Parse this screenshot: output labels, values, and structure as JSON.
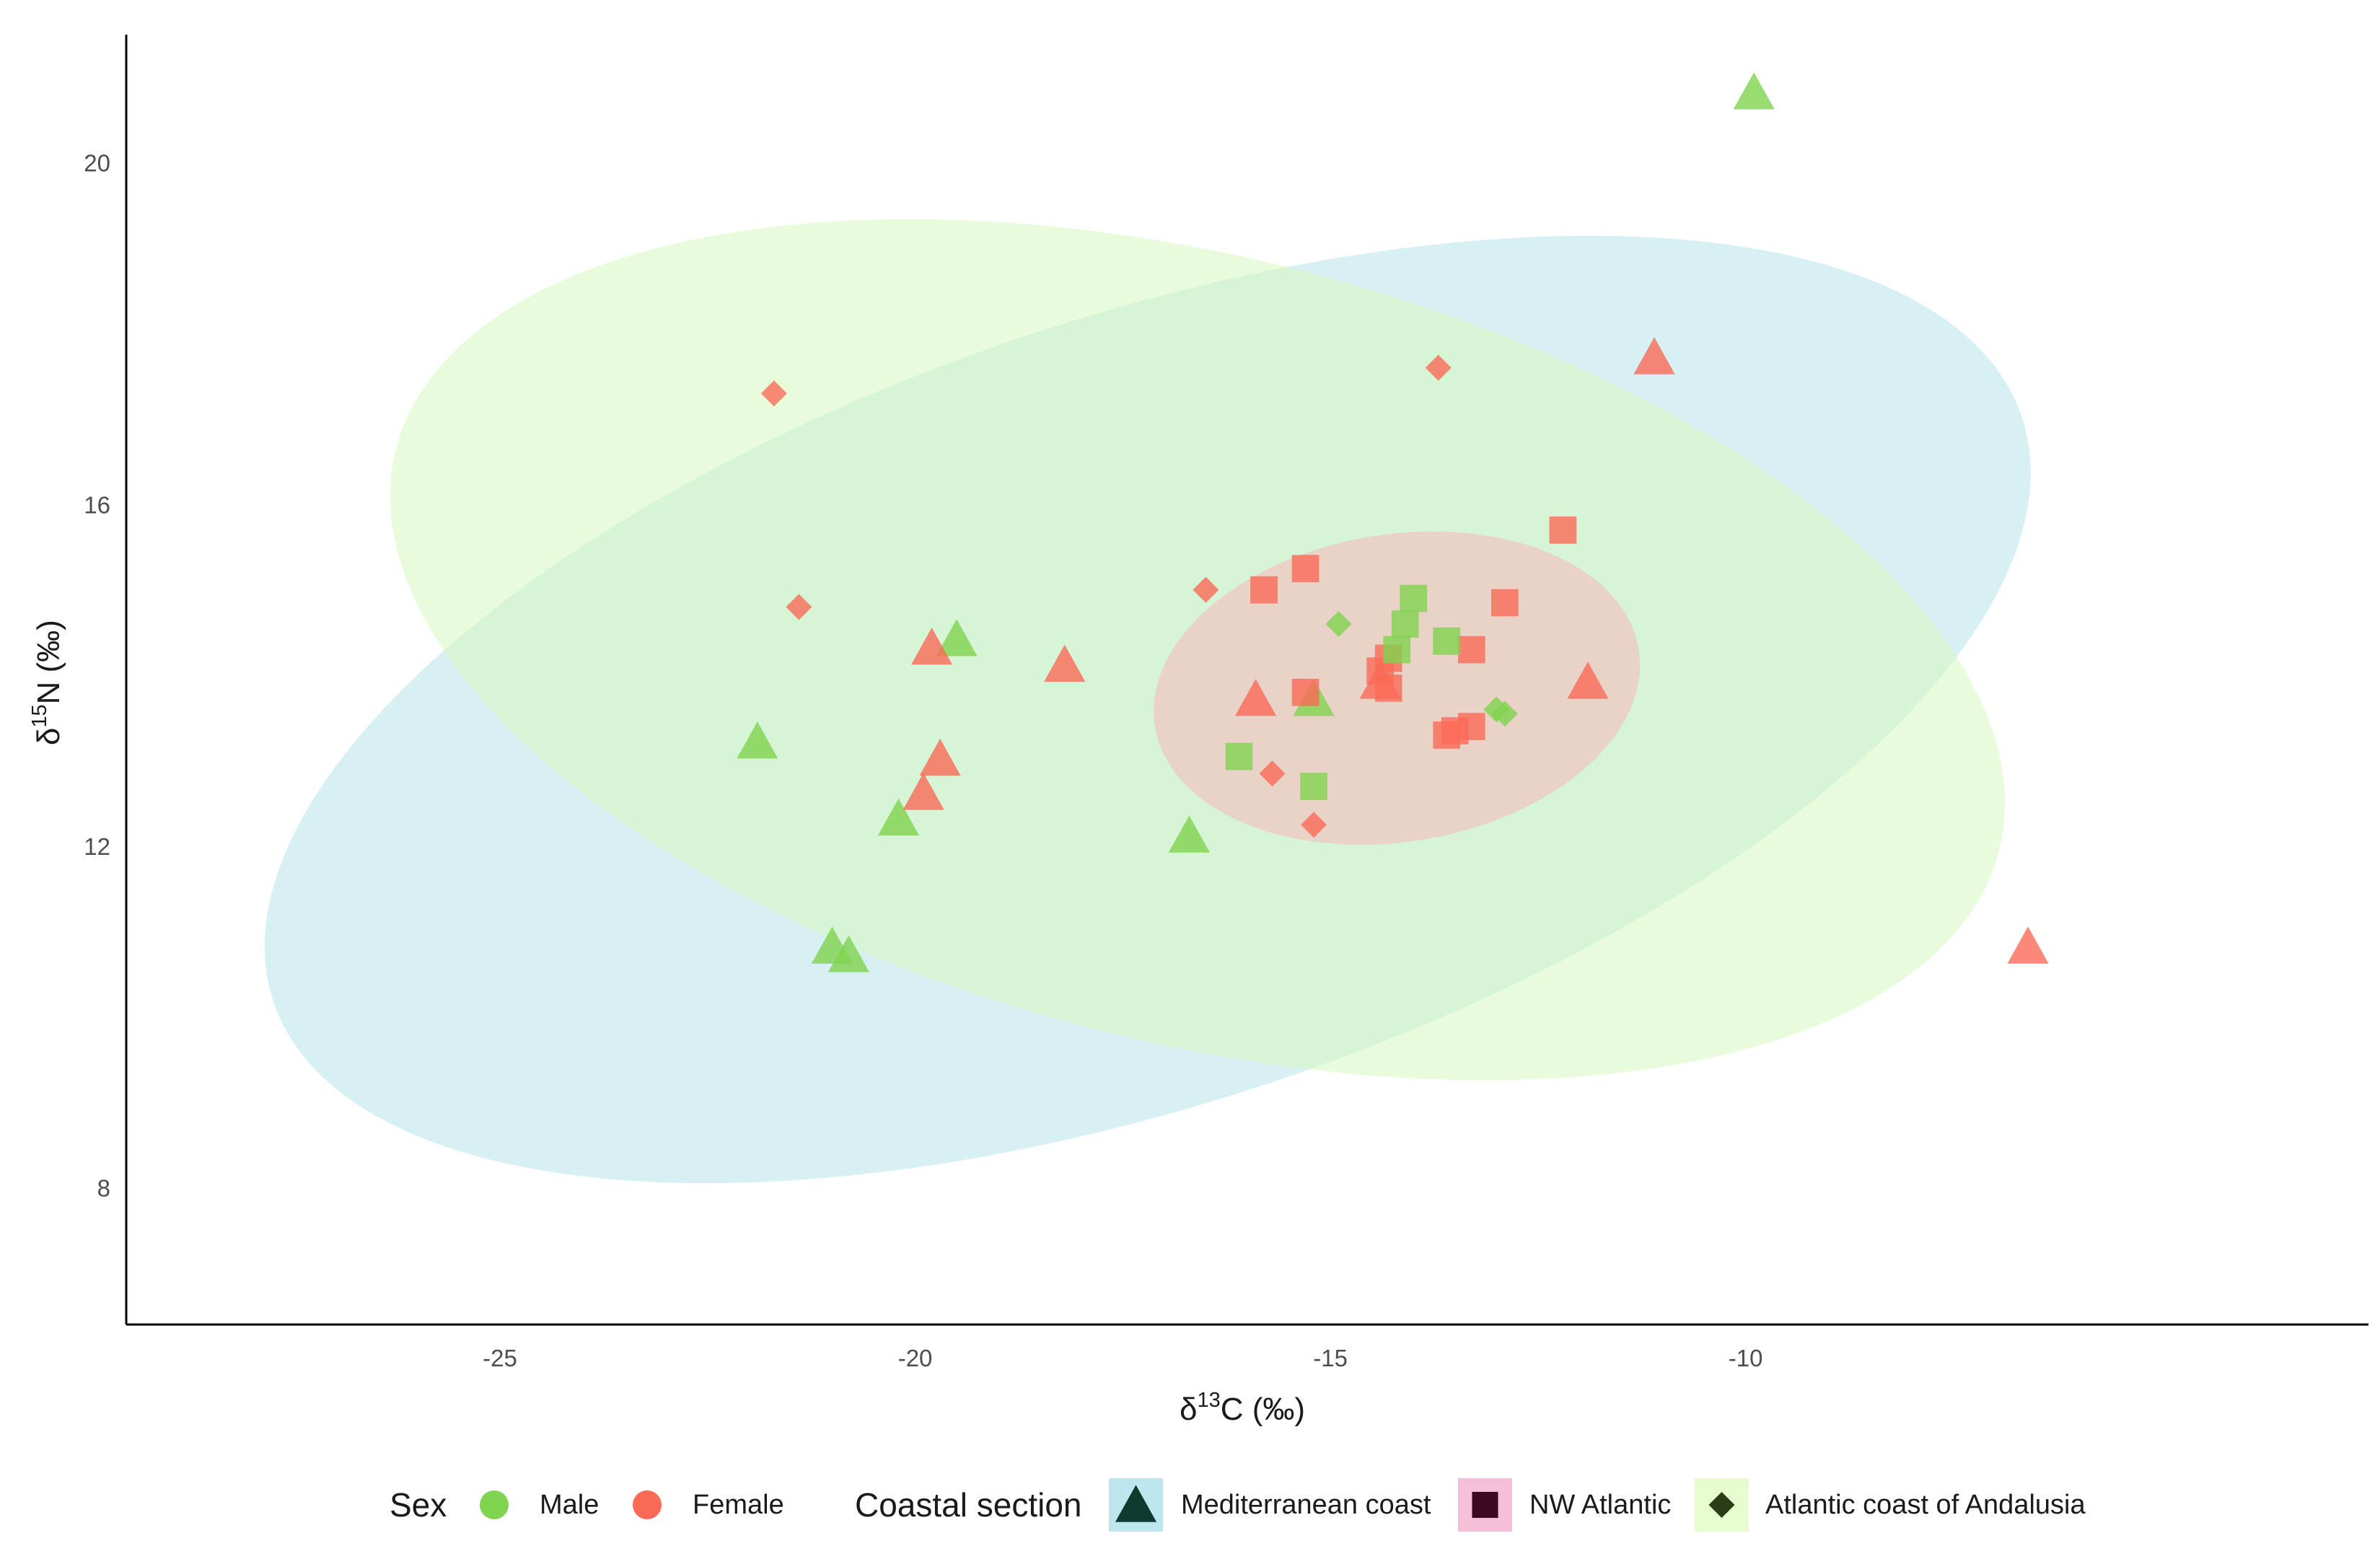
{
  "chart_data": {
    "type": "scatter",
    "xlabel": {
      "prefix": "δ",
      "sup": "13",
      "main": "C (‰)"
    },
    "ylabel": {
      "prefix": "δ",
      "sup": "15",
      "main": "N (‰)"
    },
    "xlim": [
      -29.5,
      -2.5
    ],
    "ylim": [
      6.4,
      21.5
    ],
    "x_ticks": [
      -25,
      -20,
      -15,
      -10
    ],
    "x_tick_labels": [
      "-25",
      "-20",
      "-15",
      "-10"
    ],
    "y_ticks": [
      8,
      12,
      16,
      20
    ],
    "y_tick_labels": [
      "8",
      "12",
      "16",
      "20"
    ],
    "colors": {
      "Male": "#7fd34e",
      "Female": "#fa6a56"
    },
    "ellipses": [
      {
        "group": "Mediterranean coast",
        "fill": "#b7e3e9",
        "opacity": 0.55,
        "cx": -17.2,
        "cy": 13.6,
        "rx_units": 11.1,
        "ry_units": 4.6,
        "angle_deg": -18.5
      },
      {
        "group": "Atlantic coast of Andalusia",
        "fill": "#d6f9bf",
        "opacity": 0.55,
        "cx": -16.6,
        "cy": 14.3,
        "rx_units": 9.95,
        "ry_units": 4.6,
        "angle_deg": 14
      },
      {
        "group": "NW Atlantic",
        "fill": "#f9b5bc",
        "opacity": 0.55,
        "cx": -14.2,
        "cy": 13.85,
        "rx_units": 2.95,
        "ry_units": 1.8,
        "angle_deg": -9
      }
    ],
    "points": [
      {
        "x": -9.9,
        "y": 20.8,
        "sex": "Male",
        "section": "Mediterranean coast"
      },
      {
        "x": -21.9,
        "y": 13.2,
        "sex": "Male",
        "section": "Mediterranean coast"
      },
      {
        "x": -19.5,
        "y": 14.4,
        "sex": "Male",
        "section": "Mediterranean coast"
      },
      {
        "x": -20.2,
        "y": 12.3,
        "sex": "Male",
        "section": "Mediterranean coast"
      },
      {
        "x": -21.0,
        "y": 10.8,
        "sex": "Male",
        "section": "Mediterranean coast"
      },
      {
        "x": -20.8,
        "y": 10.7,
        "sex": "Male",
        "section": "Mediterranean coast"
      },
      {
        "x": -16.7,
        "y": 12.1,
        "sex": "Male",
        "section": "Mediterranean coast"
      },
      {
        "x": -15.2,
        "y": 13.7,
        "sex": "Male",
        "section": "Mediterranean coast"
      },
      {
        "x": -11.1,
        "y": 17.7,
        "sex": "Female",
        "section": "Mediterranean coast"
      },
      {
        "x": -19.8,
        "y": 14.3,
        "sex": "Female",
        "section": "Mediterranean coast"
      },
      {
        "x": -18.2,
        "y": 14.1,
        "sex": "Female",
        "section": "Mediterranean coast"
      },
      {
        "x": -19.7,
        "y": 13.0,
        "sex": "Female",
        "section": "Mediterranean coast"
      },
      {
        "x": -19.9,
        "y": 12.6,
        "sex": "Female",
        "section": "Mediterranean coast"
      },
      {
        "x": -15.9,
        "y": 13.7,
        "sex": "Female",
        "section": "Mediterranean coast"
      },
      {
        "x": -14.4,
        "y": 13.9,
        "sex": "Female",
        "section": "Mediterranean coast"
      },
      {
        "x": -11.9,
        "y": 13.9,
        "sex": "Female",
        "section": "Mediterranean coast"
      },
      {
        "x": -6.6,
        "y": 10.8,
        "sex": "Female",
        "section": "Mediterranean coast"
      },
      {
        "x": -15.8,
        "y": 15.0,
        "sex": "Female",
        "section": "NW Atlantic"
      },
      {
        "x": -15.3,
        "y": 15.25,
        "sex": "Female",
        "section": "NW Atlantic"
      },
      {
        "x": -12.2,
        "y": 15.7,
        "sex": "Female",
        "section": "NW Atlantic"
      },
      {
        "x": -12.9,
        "y": 14.85,
        "sex": "Female",
        "section": "NW Atlantic"
      },
      {
        "x": -13.3,
        "y": 14.3,
        "sex": "Female",
        "section": "NW Atlantic"
      },
      {
        "x": -14.3,
        "y": 14.2,
        "sex": "Female",
        "section": "NW Atlantic"
      },
      {
        "x": -14.4,
        "y": 14.05,
        "sex": "Female",
        "section": "NW Atlantic"
      },
      {
        "x": -15.3,
        "y": 13.8,
        "sex": "Female",
        "section": "NW Atlantic"
      },
      {
        "x": -14.3,
        "y": 13.85,
        "sex": "Female",
        "section": "NW Atlantic"
      },
      {
        "x": -13.3,
        "y": 13.4,
        "sex": "Female",
        "section": "NW Atlantic"
      },
      {
        "x": -13.6,
        "y": 13.3,
        "sex": "Female",
        "section": "NW Atlantic"
      },
      {
        "x": -13.5,
        "y": 13.35,
        "sex": "Female",
        "section": "NW Atlantic"
      },
      {
        "x": -14.0,
        "y": 14.9,
        "sex": "Male",
        "section": "NW Atlantic"
      },
      {
        "x": -14.1,
        "y": 14.6,
        "sex": "Male",
        "section": "NW Atlantic"
      },
      {
        "x": -14.2,
        "y": 14.3,
        "sex": "Male",
        "section": "NW Atlantic"
      },
      {
        "x": -13.6,
        "y": 14.4,
        "sex": "Male",
        "section": "NW Atlantic"
      },
      {
        "x": -16.1,
        "y": 13.05,
        "sex": "Male",
        "section": "NW Atlantic"
      },
      {
        "x": -15.2,
        "y": 12.7,
        "sex": "Male",
        "section": "NW Atlantic"
      },
      {
        "x": -21.7,
        "y": 17.3,
        "sex": "Female",
        "section": "Atlantic coast of Andalusia"
      },
      {
        "x": -21.4,
        "y": 14.8,
        "sex": "Female",
        "section": "Atlantic coast of Andalusia"
      },
      {
        "x": -13.7,
        "y": 17.6,
        "sex": "Female",
        "section": "Atlantic coast of Andalusia"
      },
      {
        "x": -16.5,
        "y": 15.0,
        "sex": "Female",
        "section": "Atlantic coast of Andalusia"
      },
      {
        "x": -15.7,
        "y": 12.85,
        "sex": "Female",
        "section": "Atlantic coast of Andalusia"
      },
      {
        "x": -15.2,
        "y": 12.25,
        "sex": "Female",
        "section": "Atlantic coast of Andalusia"
      },
      {
        "x": -14.9,
        "y": 14.6,
        "sex": "Male",
        "section": "Atlantic coast of Andalusia"
      },
      {
        "x": -13.0,
        "y": 13.6,
        "sex": "Male",
        "section": "Atlantic coast of Andalusia"
      },
      {
        "x": -12.9,
        "y": 13.55,
        "sex": "Male",
        "section": "Atlantic coast of Andalusia"
      }
    ],
    "legend": {
      "position": "bottom",
      "sex_title": "Sex",
      "sex_items": [
        {
          "label": "Male",
          "color": "#7fd34e"
        },
        {
          "label": "Female",
          "color": "#fa6a56"
        }
      ],
      "section_title": "Coastal section",
      "section_items": [
        {
          "label": "Mediterranean coast",
          "shape": "triangle",
          "bg": "#bfe6ee",
          "color": "#0f3b2f"
        },
        {
          "label": "NW Atlantic",
          "shape": "square",
          "bg": "#f5bfd8",
          "color": "#3d0822"
        },
        {
          "label": "Atlantic coast of Andalusia",
          "shape": "diamond",
          "bg": "#e6fccf",
          "color": "#2b3d16"
        }
      ]
    }
  }
}
